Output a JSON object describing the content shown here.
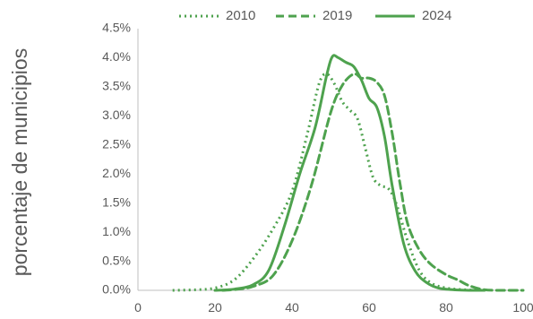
{
  "chart_data": {
    "type": "line",
    "xlabel": "",
    "ylabel": "porcentaje de municipios",
    "xlim": [
      0,
      100
    ],
    "ylim": [
      0,
      0.045
    ],
    "x_ticks": [
      "0",
      "20",
      "40",
      "60",
      "80",
      "100"
    ],
    "y_ticks": [
      "0.0%",
      "0.5%",
      "1.0%",
      "1.5%",
      "2.0%",
      "2.5%",
      "3.0%",
      "3.5%",
      "4.0%",
      "4.5%"
    ],
    "grid": false,
    "legend_position": "top-center",
    "color": "#4ea24e",
    "series": [
      {
        "name": "2010",
        "style": "dotted",
        "x": [
          9,
          15,
          20,
          25,
          30,
          35,
          40,
          44,
          47,
          49,
          51,
          53,
          55,
          57,
          59,
          61,
          63,
          65,
          67,
          70,
          73,
          76,
          80,
          85,
          90
        ],
        "y": [
          0.0,
          0.0001,
          0.0004,
          0.0018,
          0.0055,
          0.0105,
          0.017,
          0.027,
          0.0355,
          0.0372,
          0.0355,
          0.0325,
          0.031,
          0.0295,
          0.0245,
          0.0195,
          0.018,
          0.0175,
          0.015,
          0.0085,
          0.0035,
          0.0013,
          0.0004,
          0.0001,
          0.0
        ]
      },
      {
        "name": "2019",
        "style": "dashed",
        "x": [
          22,
          26,
          30,
          35,
          40,
          45,
          50,
          53,
          56,
          58,
          60,
          62,
          64,
          66,
          68,
          70,
          73,
          76,
          80,
          83,
          86,
          90,
          95,
          100
        ],
        "y": [
          0.0,
          0.0002,
          0.0007,
          0.0025,
          0.0085,
          0.018,
          0.0305,
          0.0352,
          0.0372,
          0.0365,
          0.0365,
          0.0358,
          0.0335,
          0.027,
          0.0185,
          0.0115,
          0.007,
          0.0045,
          0.0027,
          0.0018,
          0.0008,
          0.0001,
          0.0,
          0.0
        ]
      },
      {
        "name": "2024",
        "style": "solid",
        "x": [
          20,
          25,
          30,
          34,
          38,
          42,
          46,
          49,
          50.5,
          52,
          54,
          56,
          58,
          60,
          62,
          64,
          66,
          69,
          72,
          75,
          78,
          82,
          86,
          90
        ],
        "y": [
          0.0,
          0.0002,
          0.001,
          0.0035,
          0.011,
          0.02,
          0.028,
          0.037,
          0.0402,
          0.04,
          0.0392,
          0.0385,
          0.0362,
          0.033,
          0.0315,
          0.0265,
          0.018,
          0.008,
          0.0033,
          0.0013,
          0.0004,
          0.0001,
          0.0,
          0.0
        ]
      }
    ]
  }
}
